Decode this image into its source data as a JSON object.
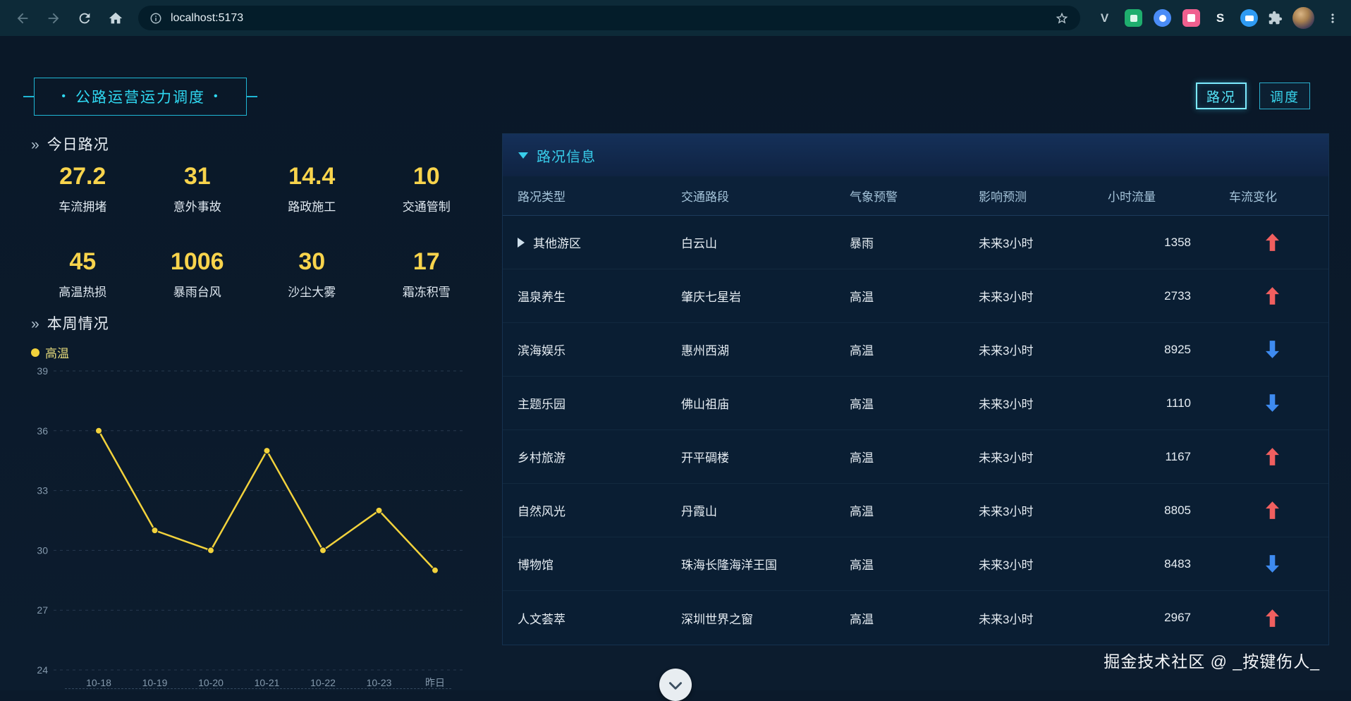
{
  "browser": {
    "url": "localhost:5173",
    "extensions": [
      {
        "name": "vue-devtools",
        "glyph": "V"
      },
      {
        "name": "green-extension"
      },
      {
        "name": "blue-extension"
      },
      {
        "name": "pink-extension"
      },
      {
        "name": "sider-extension",
        "glyph": "S"
      },
      {
        "name": "round-blue-extension"
      }
    ]
  },
  "header": {
    "title": "公路运营运力调度",
    "title_dot": "•",
    "mode_buttons": [
      {
        "label": "路况",
        "active": true
      },
      {
        "label": "调度",
        "active": false
      }
    ]
  },
  "today": {
    "section_marker": "»",
    "section_title": "今日路况",
    "stats": [
      {
        "value": "27.2",
        "label": "车流拥堵"
      },
      {
        "value": "31",
        "label": "意外事故"
      },
      {
        "value": "14.4",
        "label": "路政施工"
      },
      {
        "value": "10",
        "label": "交通管制"
      },
      {
        "value": "45",
        "label": "高温热损"
      },
      {
        "value": "1006",
        "label": "暴雨台风"
      },
      {
        "value": "30",
        "label": "沙尘大雾"
      },
      {
        "value": "17",
        "label": "霜冻积雪"
      }
    ]
  },
  "week": {
    "section_marker": "»",
    "section_title": "本周情况",
    "legend": "高温"
  },
  "chart_data": {
    "type": "line",
    "title": "本周情况 高温",
    "x": [
      "10-18",
      "10-19",
      "10-20",
      "10-21",
      "10-22",
      "10-23",
      "昨日"
    ],
    "series": [
      {
        "name": "高温",
        "values": [
          36,
          31,
          30,
          35,
          30,
          32,
          29
        ]
      }
    ],
    "ylim": [
      24,
      39
    ],
    "yticks": [
      24,
      27,
      30,
      33,
      36,
      39
    ],
    "grid": "horizontal-dashed",
    "legend_position": "top-left",
    "line_color": "#f2d23c"
  },
  "traffic_panel": {
    "title": "路况信息",
    "columns": [
      "路况类型",
      "交通路段",
      "气象预警",
      "影响预测",
      "小时流量",
      "车流变化"
    ],
    "rows": [
      {
        "type": "其他游区",
        "expand": true,
        "road": "白云山",
        "weather": "暴雨",
        "forecast": "未来3小时",
        "flow": "1358",
        "trend": "up"
      },
      {
        "type": "温泉养生",
        "expand": false,
        "road": "肇庆七星岩",
        "weather": "高温",
        "forecast": "未来3小时",
        "flow": "2733",
        "trend": "up"
      },
      {
        "type": "滨海娱乐",
        "expand": false,
        "road": "惠州西湖",
        "weather": "高温",
        "forecast": "未来3小时",
        "flow": "8925",
        "trend": "down"
      },
      {
        "type": "主题乐园",
        "expand": false,
        "road": "佛山祖庙",
        "weather": "高温",
        "forecast": "未来3小时",
        "flow": "1110",
        "trend": "down"
      },
      {
        "type": "乡村旅游",
        "expand": false,
        "road": "开平碉楼",
        "weather": "高温",
        "forecast": "未来3小时",
        "flow": "1167",
        "trend": "up"
      },
      {
        "type": "自然风光",
        "expand": false,
        "road": "丹霞山",
        "weather": "高温",
        "forecast": "未来3小时",
        "flow": "8805",
        "trend": "up"
      },
      {
        "type": "博物馆",
        "expand": false,
        "road": "珠海长隆海洋王国",
        "weather": "高温",
        "forecast": "未来3小时",
        "flow": "8483",
        "trend": "down"
      },
      {
        "type": "人文荟萃",
        "expand": false,
        "road": "深圳世界之窗",
        "weather": "高温",
        "forecast": "未来3小时",
        "flow": "2967",
        "trend": "up"
      }
    ]
  },
  "watermark": "掘金技术社区 @ _按键伤人_",
  "colors": {
    "accent_cyan": "#2fd9f2",
    "value_yellow": "#f8d44c",
    "trend_up_red": "#f05f5f",
    "trend_down_blue": "#3e8bf0",
    "line_yellow": "#f2d23c"
  }
}
